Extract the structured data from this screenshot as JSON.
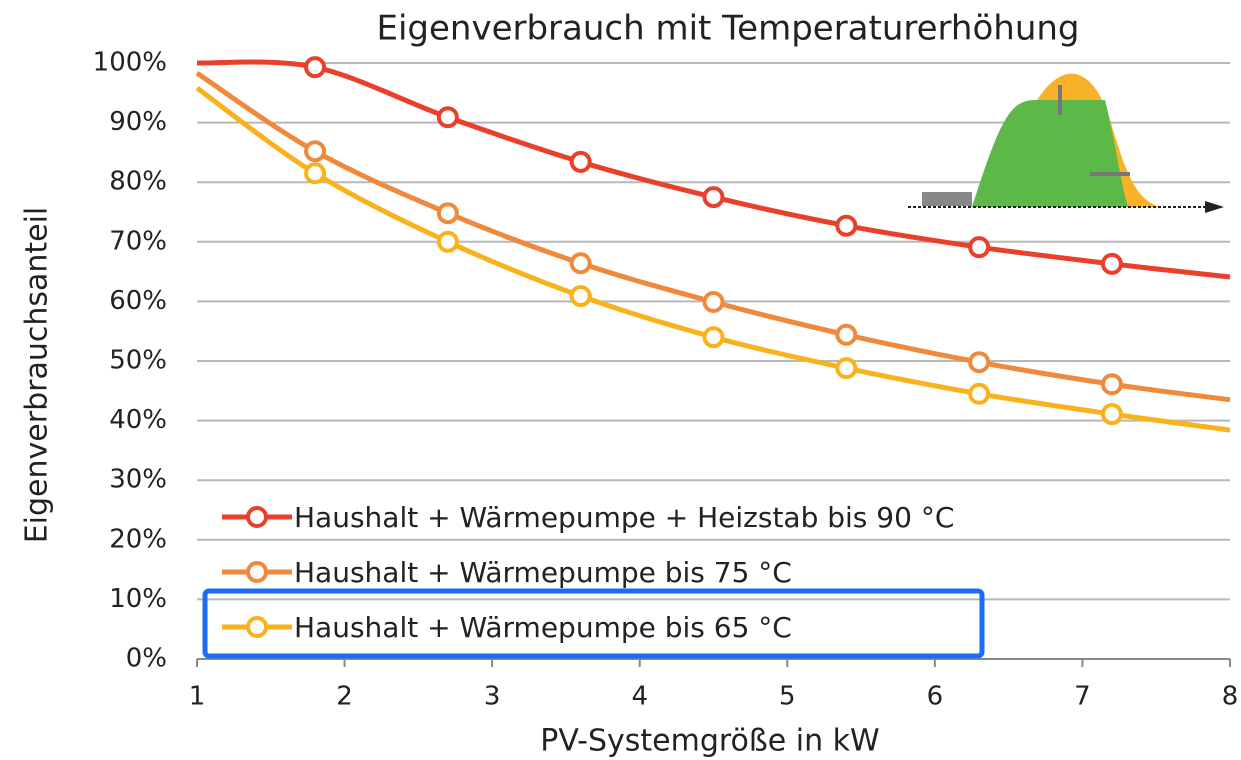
{
  "chart_data": {
    "type": "line",
    "title": "Eigenverbrauch mit Temperaturerhöhung",
    "x_label": "PV-Systemgröße in kW",
    "y_label": "Eigenverbrauchsanteil",
    "x": [
      1,
      1.8,
      2.7,
      3.6,
      4.5,
      5.4,
      6.3,
      7.2,
      8
    ],
    "markers": [
      false,
      true,
      true,
      true,
      true,
      true,
      true,
      true,
      false
    ],
    "series": [
      {
        "name": "Haushalt + Wärmepumpe + Heizstab bis 90 °C",
        "color": "#e8402a",
        "values": [
          100,
          99.3,
          90.9,
          83.4,
          77.5,
          72.7,
          69.1,
          66.3,
          64.1
        ]
      },
      {
        "name": "Haushalt + Wärmepumpe bis 75 °C",
        "color": "#ef8a3c",
        "values": [
          98.3,
          85.2,
          74.8,
          66.4,
          59.9,
          54.4,
          49.8,
          46.1,
          43.5
        ]
      },
      {
        "name": "Haushalt + Wärmepumpe bis 65 °C",
        "color": "#f9b21c",
        "values": [
          95.8,
          81.5,
          70,
          60.9,
          54,
          48.8,
          44.5,
          41.1,
          38.4
        ]
      }
    ],
    "xlim": [
      1,
      8
    ],
    "xticks": [
      1,
      2,
      3,
      4,
      5,
      6,
      7,
      8
    ],
    "ylim": [
      0,
      100
    ],
    "yticks": [
      {
        "value": 0,
        "label": "0%"
      },
      {
        "value": 10,
        "label": "10%"
      },
      {
        "value": 20,
        "label": "20%"
      },
      {
        "value": 30,
        "label": "30%"
      },
      {
        "value": 40,
        "label": "40%"
      },
      {
        "value": 50,
        "label": "50%"
      },
      {
        "value": 60,
        "label": "60%"
      },
      {
        "value": 70,
        "label": "70%"
      },
      {
        "value": 80,
        "label": "80%"
      },
      {
        "value": 90,
        "label": "90%"
      },
      {
        "value": 100,
        "label": "100%"
      }
    ],
    "grid": true,
    "legend": "lower left"
  }
}
